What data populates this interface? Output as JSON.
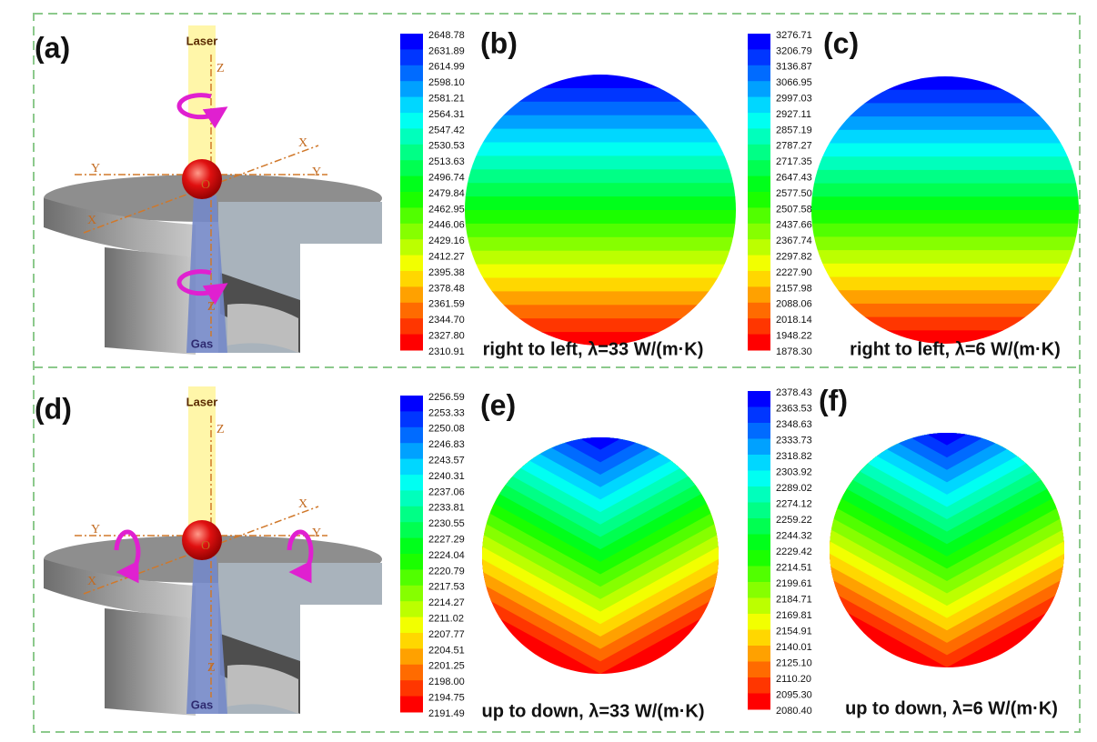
{
  "panels": {
    "a": {
      "label": "(a)",
      "laser": "Laser",
      "gas": "Gas",
      "z_top": "Z",
      "z_bottom": "Z",
      "x_back": "X",
      "x_front": "X",
      "y_left": "Y",
      "y_right": "Y",
      "origin": "O"
    },
    "b": {
      "label": "(b)",
      "caption": "right to left, λ=33 W/(m·K)",
      "colorbar": [
        "2648.78",
        "2631.89",
        "2614.99",
        "2598.10",
        "2581.21",
        "2564.31",
        "2547.42",
        "2530.53",
        "2513.63",
        "2496.74",
        "2479.84",
        "2462.95",
        "2446.06",
        "2429.16",
        "2412.27",
        "2395.38",
        "2378.48",
        "2361.59",
        "2344.70",
        "2327.80",
        "2310.91"
      ]
    },
    "c": {
      "label": "(c)",
      "caption": "right to left, λ=6 W/(m·K)",
      "colorbar": [
        "3276.71",
        "3206.79",
        "3136.87",
        "3066.95",
        "2997.03",
        "2927.11",
        "2857.19",
        "2787.27",
        "2717.35",
        "2647.43",
        "2577.50",
        "2507.58",
        "2437.66",
        "2367.74",
        "2297.82",
        "2227.90",
        "2157.98",
        "2088.06",
        "2018.14",
        "1948.22",
        "1878.30"
      ]
    },
    "d": {
      "label": "(d)",
      "laser": "Laser",
      "gas": "Gas",
      "z_top": "Z",
      "z_bottom": "Z",
      "x_back": "X",
      "x_front": "X",
      "y_left": "Y",
      "y_right": "Y",
      "origin": "O"
    },
    "e": {
      "label": "(e)",
      "caption": "up to down, λ=33 W/(m·K)",
      "colorbar": [
        "2256.59",
        "2253.33",
        "2250.08",
        "2246.83",
        "2243.57",
        "2240.31",
        "2237.06",
        "2233.81",
        "2230.55",
        "2227.29",
        "2224.04",
        "2220.79",
        "2217.53",
        "2214.27",
        "2211.02",
        "2207.77",
        "2204.51",
        "2201.25",
        "2198.00",
        "2194.75",
        "2191.49"
      ]
    },
    "f": {
      "label": "(f)",
      "caption": "up to down, λ=6 W/(m·K)",
      "colorbar": [
        "2378.43",
        "2363.53",
        "2348.63",
        "2333.73",
        "2318.82",
        "2303.92",
        "2289.02",
        "2274.12",
        "2259.22",
        "2244.32",
        "2229.42",
        "2214.51",
        "2199.61",
        "2184.71",
        "2169.81",
        "2154.91",
        "2140.01",
        "2125.10",
        "2110.20",
        "2095.30",
        "2080.40"
      ]
    }
  }
}
